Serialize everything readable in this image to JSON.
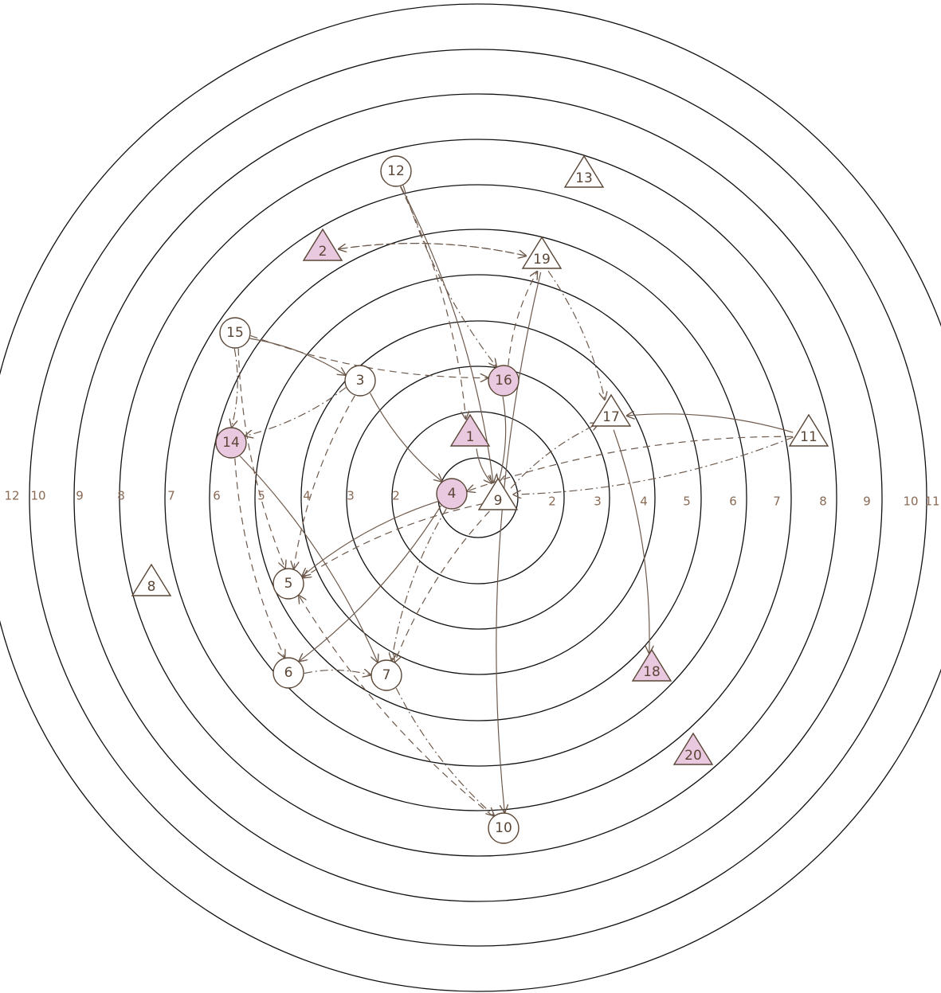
{
  "ring_labels": {
    "left": [
      "12",
      "10",
      "9",
      "8",
      "7",
      "6",
      "5",
      "4",
      "3",
      "2"
    ],
    "right": [
      "2",
      "3",
      "4",
      "5",
      "6",
      "7",
      "8",
      "9",
      "10",
      "11"
    ]
  },
  "nodes": [
    "12",
    "13",
    "2",
    "19",
    "15",
    "3",
    "16",
    "17",
    "11",
    "14",
    "1",
    "4",
    "9",
    "8",
    "5",
    "18",
    "6",
    "7",
    "20",
    "10"
  ]
}
